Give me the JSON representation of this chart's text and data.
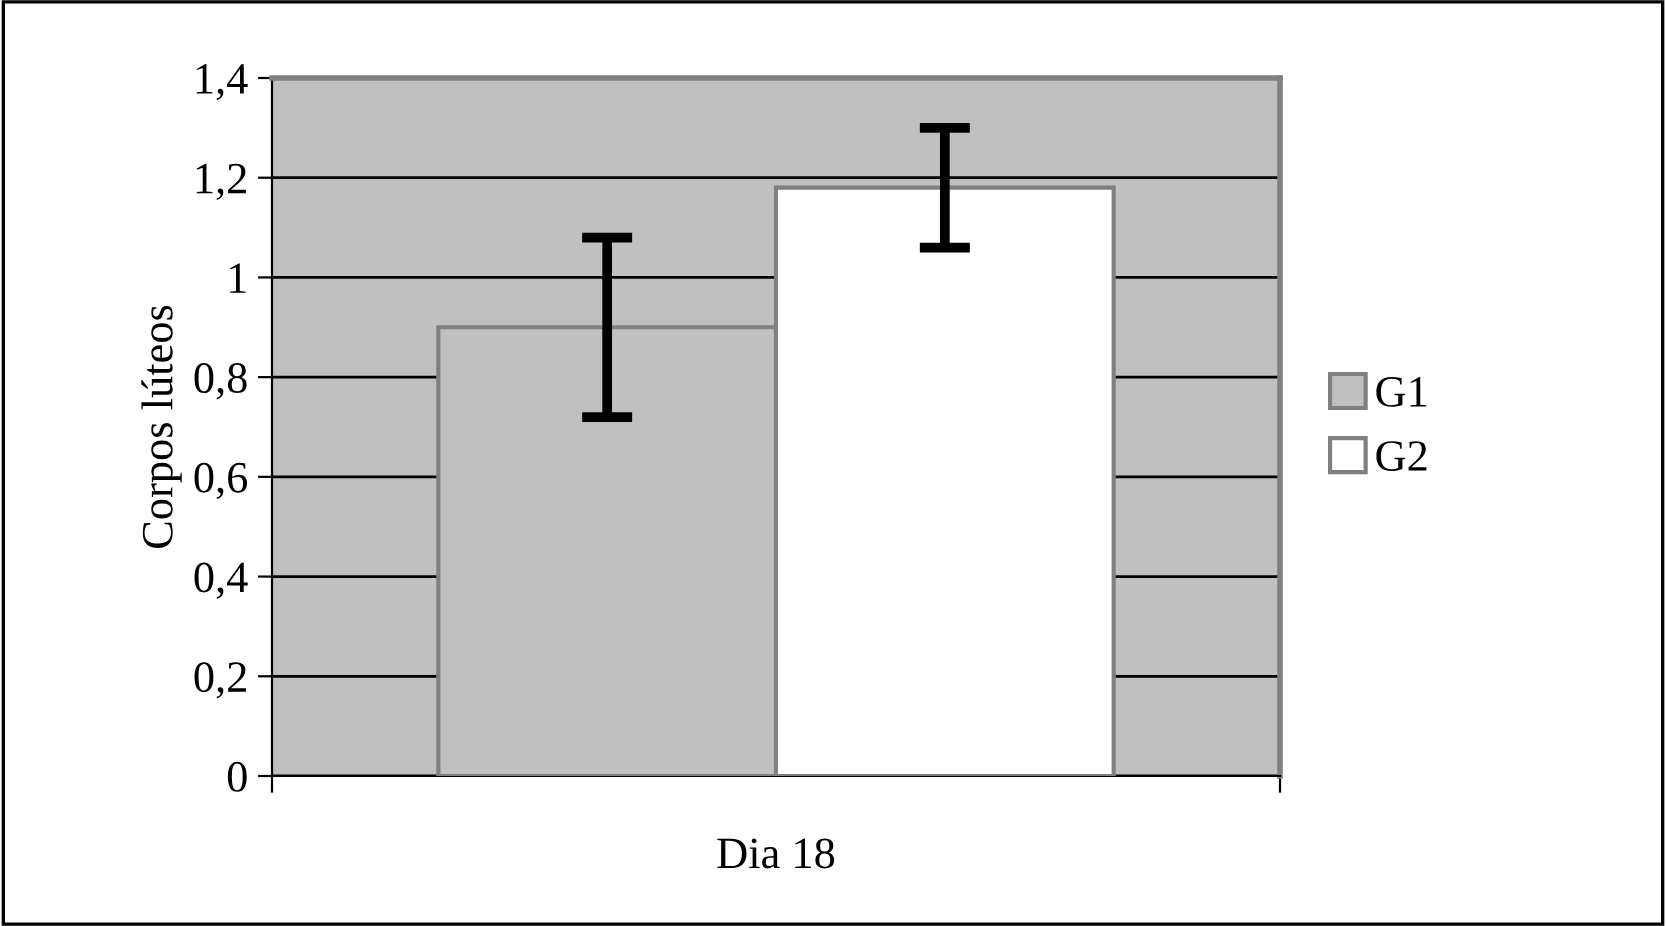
{
  "chart_data": {
    "type": "bar",
    "ylabel": "Corpos lúteos",
    "categories": [
      "Dia 18"
    ],
    "series": [
      {
        "name": "G1",
        "color": "#c0c0c0",
        "values": [
          0.9
        ],
        "errors": [
          0.18
        ]
      },
      {
        "name": "G2",
        "color": "#ffffff",
        "values": [
          1.18
        ],
        "errors": [
          0.12
        ]
      }
    ],
    "ylim": [
      0,
      1.4
    ],
    "yticks": [
      0,
      {
        "value": 0.2,
        "label": "0,2"
      },
      {
        "value": 0.4,
        "label": "0,4"
      },
      {
        "value": 0.6,
        "label": "0,6"
      },
      {
        "value": 0.8,
        "label": "0,8"
      },
      1,
      {
        "value": 1.2,
        "label": "1,2"
      },
      {
        "value": 1.4,
        "label": "1,4"
      }
    ],
    "grid": "y",
    "legend": "right"
  }
}
